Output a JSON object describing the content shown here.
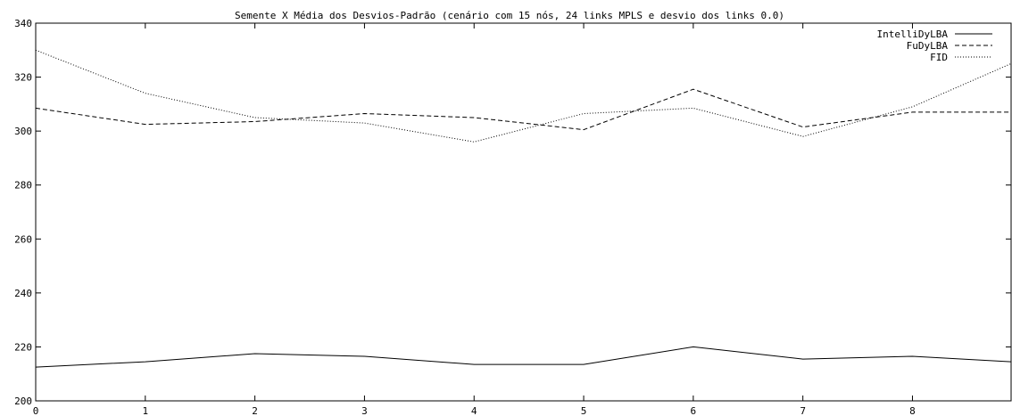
{
  "chart_data": {
    "type": "line",
    "title": "Semente X Média dos Desvios-Padrão (cenário com 15 nós, 24 links MPLS e desvio dos links 0.0)",
    "xlabel": "",
    "ylabel": "",
    "xlim": [
      0,
      8.9
    ],
    "ylim": [
      200,
      340
    ],
    "xticks": [
      0,
      1,
      2,
      3,
      4,
      5,
      6,
      7,
      8
    ],
    "yticks": [
      200,
      220,
      240,
      260,
      280,
      300,
      320,
      340
    ],
    "grid": false,
    "legend_position": "top-right",
    "series": [
      {
        "name": "IntelliDyLBA",
        "style": "solid",
        "x": [
          0,
          1,
          2,
          3,
          4,
          5,
          6,
          7,
          8,
          8.9
        ],
        "values": [
          212.5,
          214.5,
          217.5,
          216.5,
          213.5,
          213.5,
          220,
          215.5,
          216.5,
          214.5
        ]
      },
      {
        "name": "FuDyLBA",
        "style": "dashed",
        "x": [
          0,
          1,
          2,
          3,
          4,
          5,
          6,
          7,
          8,
          8.9
        ],
        "values": [
          308.5,
          302.5,
          303.5,
          306.5,
          305,
          300.5,
          315.5,
          301.5,
          307,
          307
        ]
      },
      {
        "name": "FID",
        "style": "dotted",
        "x": [
          0,
          1,
          2,
          3,
          4,
          5,
          6,
          7,
          8,
          8.9
        ],
        "values": [
          330,
          314,
          305,
          303,
          296,
          306.5,
          308.5,
          298,
          309,
          325
        ]
      }
    ]
  }
}
